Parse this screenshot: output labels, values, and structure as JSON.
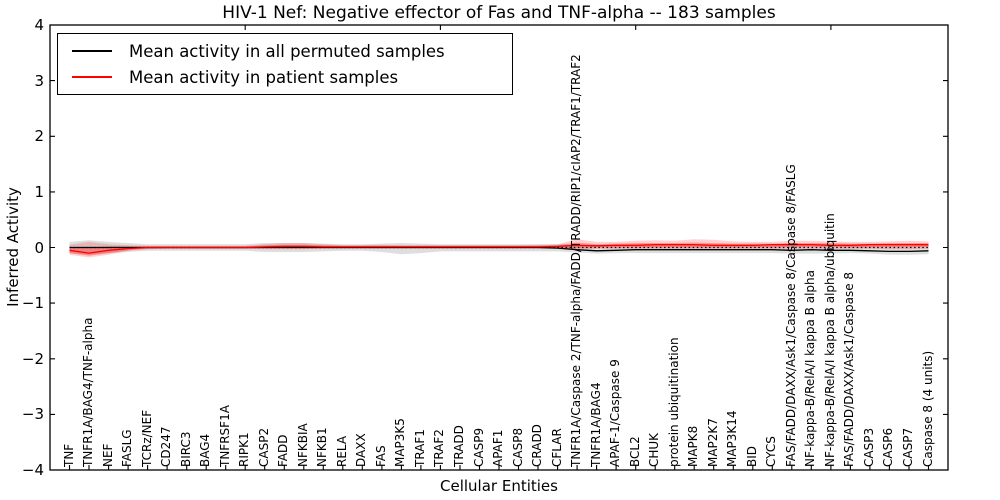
{
  "chart_data": {
    "type": "line",
    "title": "HIV-1 Nef: Negative effector of Fas and TNF-alpha -- 183 samples",
    "xlabel": "Cellular Entities",
    "ylabel": "Inferred Activity",
    "ylim": [
      -4,
      4
    ],
    "yticks": [
      4,
      3,
      2,
      1,
      0,
      -1,
      -2,
      -3,
      -4
    ],
    "ytick_labels": [
      "4",
      "3",
      "2",
      "1",
      "0",
      "−1",
      "−2",
      "−3",
      "−4"
    ],
    "grid": false,
    "legend_position": "upper left",
    "zero_line": true,
    "top_tick_indices": [
      9,
      19,
      29,
      39
    ],
    "categories": [
      "TNF",
      "TNFR1A/BAG4/TNF-alpha",
      "NEF",
      "FASLG",
      "TCRz/NEF",
      "CD247",
      "BIRC3",
      "BAG4",
      "TNFRSF1A",
      "RIPK1",
      "CASP2",
      "FADD",
      "NFKBIA",
      "NFKB1",
      "RELA",
      "DAXX",
      "FAS",
      "MAP3K5",
      "TRAF1",
      "TRAF2",
      "TRADD",
      "CASP9",
      "APAF1",
      "CASP8",
      "CRADD",
      "CFLAR",
      "TNFR1A/Caspase 2/TNF-alpha/FADD/TRADD/RIP1/cIAP2/TRAF1/TRAF2",
      "TNFR1A/BAG4",
      "APAF-1/Caspase 9",
      "BCL2",
      "CHUK",
      "protein ubiquitination",
      "MAPK8",
      "MAP2K7",
      "MAP3K14",
      "BID",
      "CYCS",
      "FAS/FADD/DAXX/Ask1/Caspase 8/Caspase 8/FASLG",
      "NF-kappa-B/RelA/I kappa B alpha",
      "NF-kappa-B/RelA/I kappa B alpha/ubiquitin",
      "FAS/FADD/DAXX/Ask1/Caspase 8",
      "CASP3",
      "CASP6",
      "CASP7",
      "Caspase 8 (4 units)"
    ],
    "series": [
      {
        "name": "Mean activity in all permuted samples",
        "color": "#000000",
        "values": [
          0,
          0,
          0,
          0,
          0,
          0,
          0,
          0,
          0,
          0,
          0,
          0,
          0,
          0,
          0,
          0,
          0,
          0,
          0,
          0,
          0,
          0,
          0,
          0,
          0,
          -0.01,
          -0.04,
          -0.06,
          -0.05,
          -0.04,
          -0.04,
          -0.04,
          -0.04,
          -0.04,
          -0.04,
          -0.04,
          -0.04,
          -0.05,
          -0.04,
          -0.05,
          -0.05,
          -0.06,
          -0.07,
          -0.07,
          -0.06
        ]
      },
      {
        "name": "Mean activity in patient samples",
        "color": "#ff0000",
        "values": [
          -0.05,
          -0.1,
          -0.05,
          -0.02,
          0,
          0,
          0,
          0,
          0,
          0,
          0.01,
          0.02,
          0.02,
          0.01,
          0.01,
          0.01,
          0.01,
          0.01,
          0.01,
          0.01,
          0.01,
          0.01,
          0.01,
          0.01,
          0.01,
          0.02,
          0.04,
          0.03,
          0.04,
          0.04,
          0.05,
          0.05,
          0.05,
          0.04,
          0.04,
          0.04,
          0.05,
          0.05,
          0.05,
          0.04,
          0.04,
          0.05,
          0.05,
          0.05,
          0.05
        ]
      }
    ],
    "bands": [
      {
        "name": "permuted samples range",
        "color": "#000000",
        "opacity": 0.13,
        "upper": [
          0.1,
          0.13,
          0.1,
          0.08,
          0.06,
          0.06,
          0.06,
          0.06,
          0.06,
          0.06,
          0.08,
          0.08,
          0.08,
          0.07,
          0.06,
          0.06,
          0.07,
          0.08,
          0.07,
          0.06,
          0.06,
          0.06,
          0.06,
          0.06,
          0.06,
          0.06,
          0.05,
          0.04,
          0.04,
          0.04,
          0.04,
          0.04,
          0.04,
          0.04,
          0.04,
          0.04,
          0.04,
          0.04,
          0.03,
          0.03,
          0.04,
          0.03,
          0.03,
          0.03,
          0.04
        ],
        "lower": [
          -0.1,
          -0.13,
          -0.1,
          -0.08,
          -0.06,
          -0.06,
          -0.06,
          -0.06,
          -0.06,
          -0.06,
          -0.08,
          -0.08,
          -0.08,
          -0.07,
          -0.06,
          -0.06,
          -0.08,
          -0.12,
          -0.1,
          -0.07,
          -0.07,
          -0.07,
          -0.07,
          -0.07,
          -0.07,
          -0.07,
          -0.09,
          -0.11,
          -0.1,
          -0.1,
          -0.1,
          -0.1,
          -0.1,
          -0.1,
          -0.1,
          -0.1,
          -0.1,
          -0.11,
          -0.11,
          -0.11,
          -0.1,
          -0.11,
          -0.13,
          -0.13,
          -0.12
        ]
      },
      {
        "name": "patient samples outer range",
        "color": "#ff0000",
        "opacity": 0.18,
        "upper": [
          0.05,
          0.1,
          0.06,
          0.04,
          0.03,
          0.03,
          0.03,
          0.03,
          0.03,
          0.03,
          0.06,
          0.08,
          0.08,
          0.06,
          0.04,
          0.04,
          0.05,
          0.04,
          0.04,
          0.04,
          0.04,
          0.04,
          0.04,
          0.04,
          0.05,
          0.06,
          0.15,
          0.1,
          0.1,
          0.12,
          0.13,
          0.12,
          0.15,
          0.14,
          0.11,
          0.1,
          0.1,
          0.12,
          0.12,
          0.11,
          0.1,
          0.1,
          0.11,
          0.12,
          0.11
        ],
        "lower": [
          -0.13,
          -0.18,
          -0.13,
          -0.06,
          -0.03,
          -0.02,
          -0.02,
          -0.02,
          -0.02,
          -0.02,
          -0.03,
          -0.03,
          -0.03,
          -0.02,
          -0.02,
          -0.02,
          -0.02,
          -0.02,
          -0.02,
          -0.02,
          -0.02,
          -0.02,
          -0.02,
          -0.02,
          -0.02,
          -0.02,
          -0.04,
          -0.02,
          -0.02,
          -0.02,
          -0.02,
          -0.02,
          -0.02,
          -0.02,
          -0.02,
          -0.02,
          -0.02,
          -0.02,
          -0.02,
          -0.02,
          -0.02,
          -0.02,
          -0.03,
          -0.03,
          -0.02
        ]
      },
      {
        "name": "patient samples inner range",
        "color": "#ff0000",
        "opacity": 0.28,
        "upper": [
          0.01,
          0.0,
          0.02,
          0.02,
          0.02,
          0.02,
          0.02,
          0.02,
          0.02,
          0.02,
          0.04,
          0.05,
          0.05,
          0.04,
          0.03,
          0.03,
          0.03,
          0.03,
          0.03,
          0.03,
          0.03,
          0.03,
          0.03,
          0.03,
          0.03,
          0.04,
          0.09,
          0.06,
          0.07,
          0.08,
          0.08,
          0.08,
          0.09,
          0.08,
          0.07,
          0.07,
          0.07,
          0.08,
          0.08,
          0.08,
          0.07,
          0.07,
          0.08,
          0.08,
          0.08
        ],
        "lower": [
          -0.1,
          -0.15,
          -0.1,
          -0.05,
          -0.02,
          -0.02,
          -0.02,
          -0.02,
          -0.02,
          -0.02,
          -0.01,
          -0.01,
          -0.01,
          -0.01,
          -0.01,
          -0.01,
          -0.01,
          -0.01,
          -0.01,
          -0.01,
          -0.01,
          -0.01,
          -0.01,
          -0.01,
          -0.01,
          -0.01,
          -0.01,
          0.0,
          0.0,
          0.0,
          0.0,
          0.0,
          0.0,
          0.0,
          0.0,
          0.0,
          0.0,
          0.01,
          0.01,
          0.01,
          0.0,
          0.0,
          0.01,
          0.01,
          0.01
        ]
      }
    ]
  }
}
